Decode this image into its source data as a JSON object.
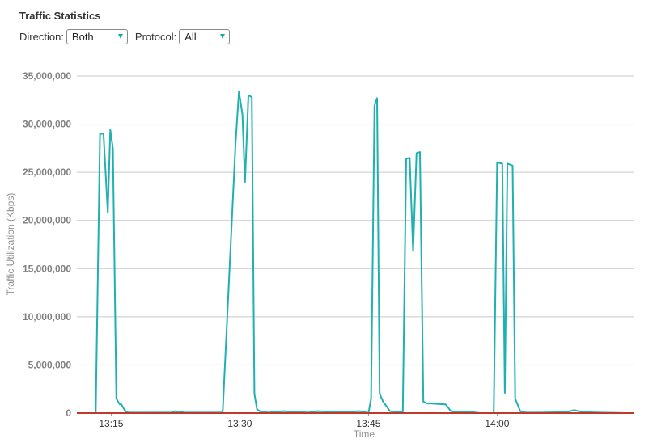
{
  "header": {
    "title": "Traffic Statistics"
  },
  "filters": {
    "direction": {
      "label": "Direction:",
      "value": "Both"
    },
    "protocol": {
      "label": "Protocol:",
      "value": "All"
    }
  },
  "colors": {
    "series": "#1fb0b0",
    "baseline": "#c0392b",
    "grid": "#c9c9c9"
  },
  "chart_data": {
    "type": "line",
    "title": "",
    "xlabel": "Time",
    "ylabel": "Traffic Utilization (Kbps)",
    "ylim": [
      0,
      35000000
    ],
    "yticks": [
      0,
      5000000,
      10000000,
      15000000,
      20000000,
      25000000,
      30000000,
      35000000
    ],
    "ytick_labels": [
      "0",
      "5,000,000",
      "10,000,000",
      "15,000,000",
      "20,000,000",
      "25,000,000",
      "30,000,000",
      "35,000,000"
    ],
    "xlim": [
      "13:11",
      "14:16"
    ],
    "xtick_labels": [
      "13:15",
      "13:30",
      "13:45",
      "14:00"
    ],
    "xtick_values": [
      "13:15",
      "13:30",
      "13:45",
      "14:00"
    ],
    "grid": true,
    "series": [
      {
        "x": [
          "13:13.2",
          "13:13.7",
          "13:14.1",
          "13:14.6",
          "13:14.9",
          "13:15.2",
          "13:15.6",
          "13:16.0",
          "13:16.2",
          "13:16.5",
          "13:16.8",
          "13:17.1",
          "13:18",
          "13:20",
          "13:22",
          "13:22.5",
          "13:23",
          "13:23.2",
          "13:23.5",
          "13:24",
          "13:26",
          "13:28",
          "13:29.5",
          "13:29.9",
          "13:30.3",
          "13:30.6",
          "13:31.0",
          "13:31.4",
          "13:31.7",
          "13:32.0",
          "13:32.3",
          "13:32.6",
          "13:32.9",
          "13:33.3",
          "13:35",
          "13:37",
          "13:38",
          "13:39",
          "13:42",
          "13:44",
          "13:45",
          "13:45.3",
          "13:45.7",
          "13:46.0",
          "13:46.3",
          "13:46.7",
          "13:47.5",
          "13:49",
          "13:49.4",
          "13:49.8",
          "13:50.2",
          "13:50.6",
          "13:51.0",
          "13:51.4",
          "13:51.8",
          "13:52.2",
          "13:54",
          "13:54.6",
          "13:55",
          "13:56",
          "13:57",
          "13:58",
          "13:59.6",
          "14:00",
          "14:00.6",
          "14:00.9",
          "14:01.2",
          "14:01.8",
          "14:02.1",
          "14:02.7",
          "14:03.3",
          "14:05",
          "14:08",
          "14:09",
          "14:10",
          "14:12",
          "14:15"
        ],
        "values": [
          0,
          29000000,
          29000000,
          20800000,
          29400000,
          27500000,
          1500000,
          900000,
          900000,
          400000,
          100000,
          50000,
          50000,
          50000,
          50000,
          200000,
          50000,
          200000,
          50000,
          50000,
          50000,
          50000,
          28000000,
          33400000,
          31000000,
          24000000,
          33000000,
          32800000,
          2000000,
          400000,
          200000,
          100000,
          100000,
          50000,
          200000,
          100000,
          50000,
          200000,
          100000,
          200000,
          0,
          1500000,
          31900000,
          32700000,
          2000000,
          1200000,
          200000,
          100000,
          26400000,
          26500000,
          16800000,
          27000000,
          27100000,
          1200000,
          1000000,
          1000000,
          900000,
          200000,
          100000,
          100000,
          100000,
          0,
          0,
          26000000,
          25900000,
          2100000,
          25900000,
          25700000,
          1500000,
          200000,
          50000,
          50000,
          100000,
          300000,
          100000,
          50000,
          0
        ]
      }
    ]
  }
}
